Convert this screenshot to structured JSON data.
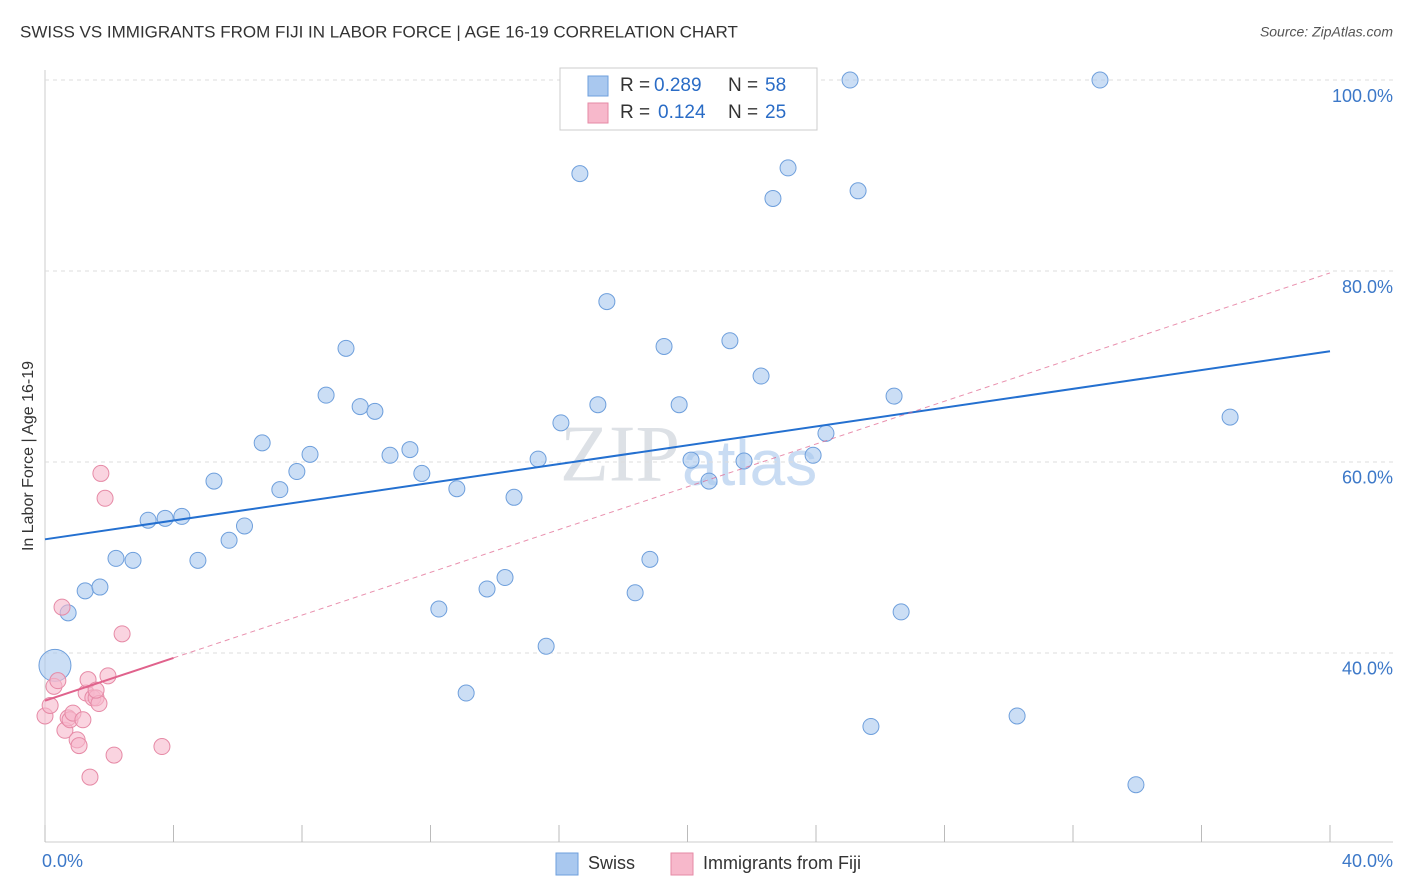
{
  "chart_data": {
    "type": "scatter",
    "title": "SWISS VS IMMIGRANTS FROM FIJI IN LABOR FORCE | AGE 16-19 CORRELATION CHART",
    "source": "Source: ZipAtlas.com",
    "y_label": "In Labor Force | Age 16-19",
    "watermark": [
      "ZIP",
      "atlas"
    ],
    "xlim": [
      0,
      40
    ],
    "ylim": [
      20.2,
      101
    ],
    "xticks": [
      {
        "value": 0,
        "label": "0.0%"
      },
      {
        "value": 40,
        "label": "40.0%"
      }
    ],
    "xminor_ticks": [
      0,
      4,
      8,
      12,
      16,
      20,
      24,
      28,
      32,
      36,
      40
    ],
    "yticks": [
      {
        "value": 40,
        "label": "40.0%"
      },
      {
        "value": 60,
        "label": "60.0%"
      },
      {
        "value": 80,
        "label": "80.0%"
      },
      {
        "value": 100,
        "label": "100.0%"
      }
    ],
    "grid": true,
    "r_label": "R =",
    "n_label": "N =",
    "series": [
      {
        "name": "Swiss",
        "color": "#a9c8ef",
        "edge": "#6e9fdc",
        "line_color": "#2470d0",
        "r": 0.289,
        "n": 58,
        "x": [
          0.31,
          0.72,
          1.25,
          1.71,
          2.21,
          2.74,
          3.21,
          3.74,
          4.26,
          4.76,
          5.26,
          5.73,
          6.21,
          6.76,
          7.31,
          7.84,
          8.25,
          8.75,
          9.37,
          9.81,
          10.27,
          10.74,
          11.36,
          11.73,
          12.26,
          12.82,
          13.11,
          13.76,
          14.32,
          14.6,
          15.35,
          15.6,
          16.06,
          16.65,
          17.21,
          17.49,
          18.37,
          18.83,
          19.27,
          19.74,
          20.11,
          20.67,
          21.32,
          21.76,
          22.29,
          22.66,
          23.13,
          23.91,
          24.31,
          25.06,
          25.31,
          25.71,
          26.43,
          26.65,
          30.26,
          32.84,
          33.96,
          36.89
        ],
        "values": [
          38.7,
          44.2,
          46.5,
          46.9,
          49.9,
          49.7,
          53.9,
          54.1,
          54.3,
          49.7,
          58.0,
          51.8,
          53.3,
          62.0,
          57.1,
          59.0,
          60.8,
          67.0,
          71.9,
          65.8,
          65.3,
          60.7,
          61.3,
          58.8,
          44.6,
          57.2,
          35.8,
          46.7,
          47.9,
          56.3,
          60.3,
          40.7,
          64.1,
          90.2,
          66.0,
          76.8,
          46.3,
          49.8,
          72.1,
          66.0,
          60.2,
          58.0,
          72.7,
          60.1,
          69.0,
          87.6,
          90.8,
          60.7,
          63.0,
          100.0,
          88.4,
          32.3,
          66.9,
          44.3,
          33.4,
          100.0,
          26.2,
          64.7
        ],
        "sizes": [
          2,
          1,
          1,
          1,
          1,
          1,
          1,
          1,
          1,
          1,
          1,
          1,
          1,
          1,
          1,
          1,
          1,
          1,
          1,
          1,
          1,
          1,
          1,
          1,
          1,
          1,
          1,
          1,
          1,
          1,
          1,
          1,
          1,
          1,
          1,
          1,
          1,
          1,
          1,
          1,
          1,
          1,
          1,
          1,
          1,
          1,
          1,
          1,
          1,
          1,
          1,
          1,
          1,
          1,
          1,
          1,
          1,
          1
        ],
        "trend_x": [
          0,
          40
        ],
        "trend_y": [
          51.9,
          71.6
        ]
      },
      {
        "name": "Immigrants from Fiji",
        "color": "#f7b8cb",
        "edge": "#e68aa6",
        "line_color": "#e0628c",
        "r": 0.124,
        "n": 25,
        "x": [
          0,
          0.16,
          0.28,
          0.4,
          0.53,
          0.62,
          0.72,
          0.78,
          0.87,
          1.0,
          1.06,
          1.18,
          1.28,
          1.34,
          1.4,
          1.49,
          1.59,
          1.68,
          1.74,
          1.87,
          1.96,
          2.15,
          2.4,
          3.64,
          1.59
        ],
        "values": [
          33.4,
          34.5,
          36.5,
          37.1,
          44.8,
          31.9,
          33.2,
          33.0,
          33.7,
          30.9,
          30.3,
          33.0,
          35.8,
          37.2,
          27.0,
          35.3,
          35.3,
          34.7,
          58.8,
          56.2,
          37.6,
          29.3,
          42.0,
          30.2,
          36.1
        ],
        "trend_x": [
          0,
          40
        ],
        "trend_y": [
          35.0,
          79.8
        ],
        "trend_solid_until": 4
      }
    ]
  }
}
